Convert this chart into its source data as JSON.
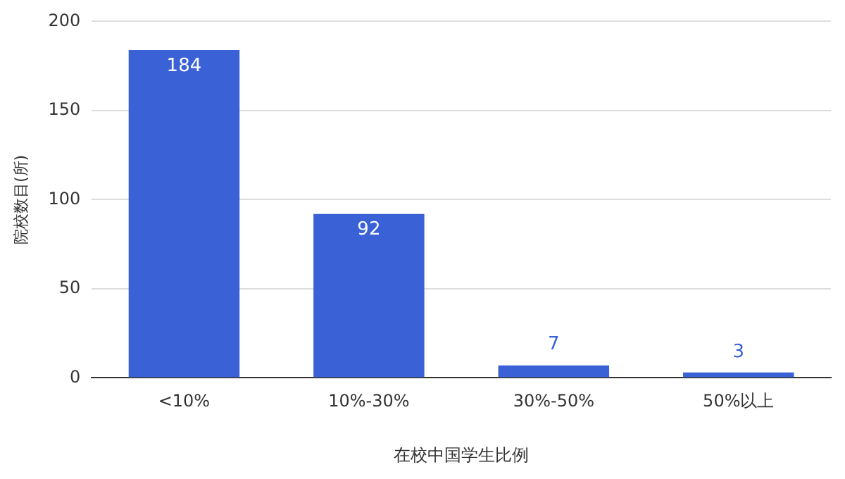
{
  "chart_data": {
    "type": "bar",
    "xlabel": "在校中国学生比例",
    "ylabel": "院校数目(所)",
    "categories": [
      "<10%",
      "10%-30%",
      "30%-50%",
      "50%以上"
    ],
    "values": [
      184,
      92,
      7,
      3
    ],
    "color": "#3a62d6",
    "ylim": [
      0,
      200
    ],
    "yticks": [
      0,
      50,
      100,
      150,
      200
    ],
    "grid": "y",
    "data_labels": true,
    "legend": false
  }
}
